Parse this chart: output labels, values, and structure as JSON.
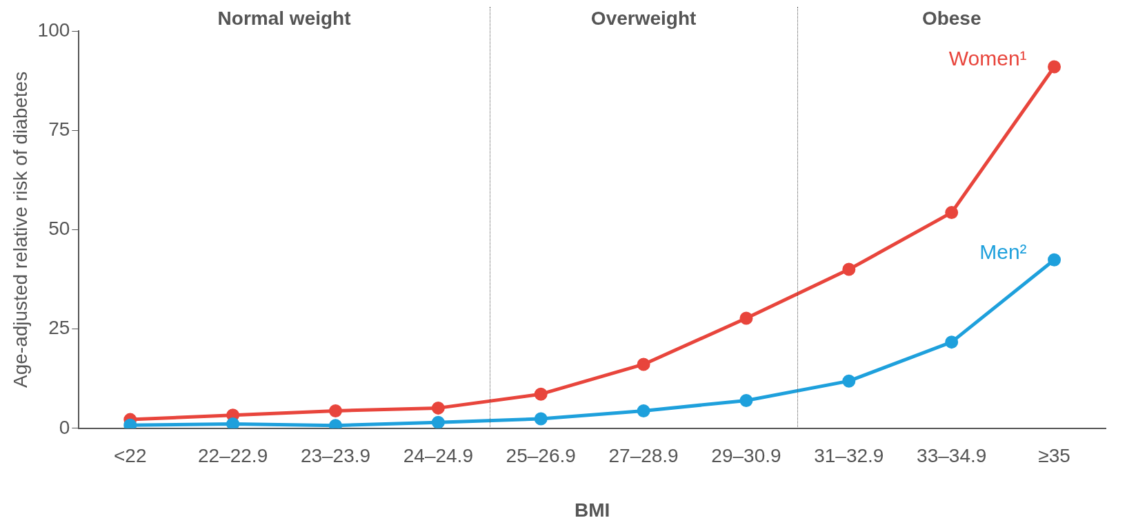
{
  "chart_data": {
    "type": "line",
    "xlabel": "BMI",
    "ylabel": "Age-adjusted relative risk of diabetes",
    "categories": [
      "<22",
      "22–22.9",
      "23–23.9",
      "24–24.9",
      "25–26.9",
      "27–28.9",
      "29–30.9",
      "31–32.9",
      "33–34.9",
      "≥35"
    ],
    "series": [
      {
        "name": "Women¹",
        "color": "#e8453c",
        "values": [
          2.2,
          3.3,
          4.4,
          5.1,
          8.6,
          16.1,
          27.7,
          40,
          54.3,
          91
        ]
      },
      {
        "name": "Men²",
        "color": "#1ea0dc",
        "values": [
          0.8,
          1.1,
          0.7,
          1.5,
          2.4,
          4.4,
          7,
          11.9,
          21.7,
          42.4
        ]
      }
    ],
    "annotations": [
      "Normal weight",
      "Overweight",
      "Obese"
    ],
    "ylim": [
      0,
      100
    ],
    "yticks": [
      0,
      25,
      50,
      75,
      100
    ],
    "grid": false,
    "legend": false,
    "marker": "circle",
    "line_style": "solid"
  }
}
